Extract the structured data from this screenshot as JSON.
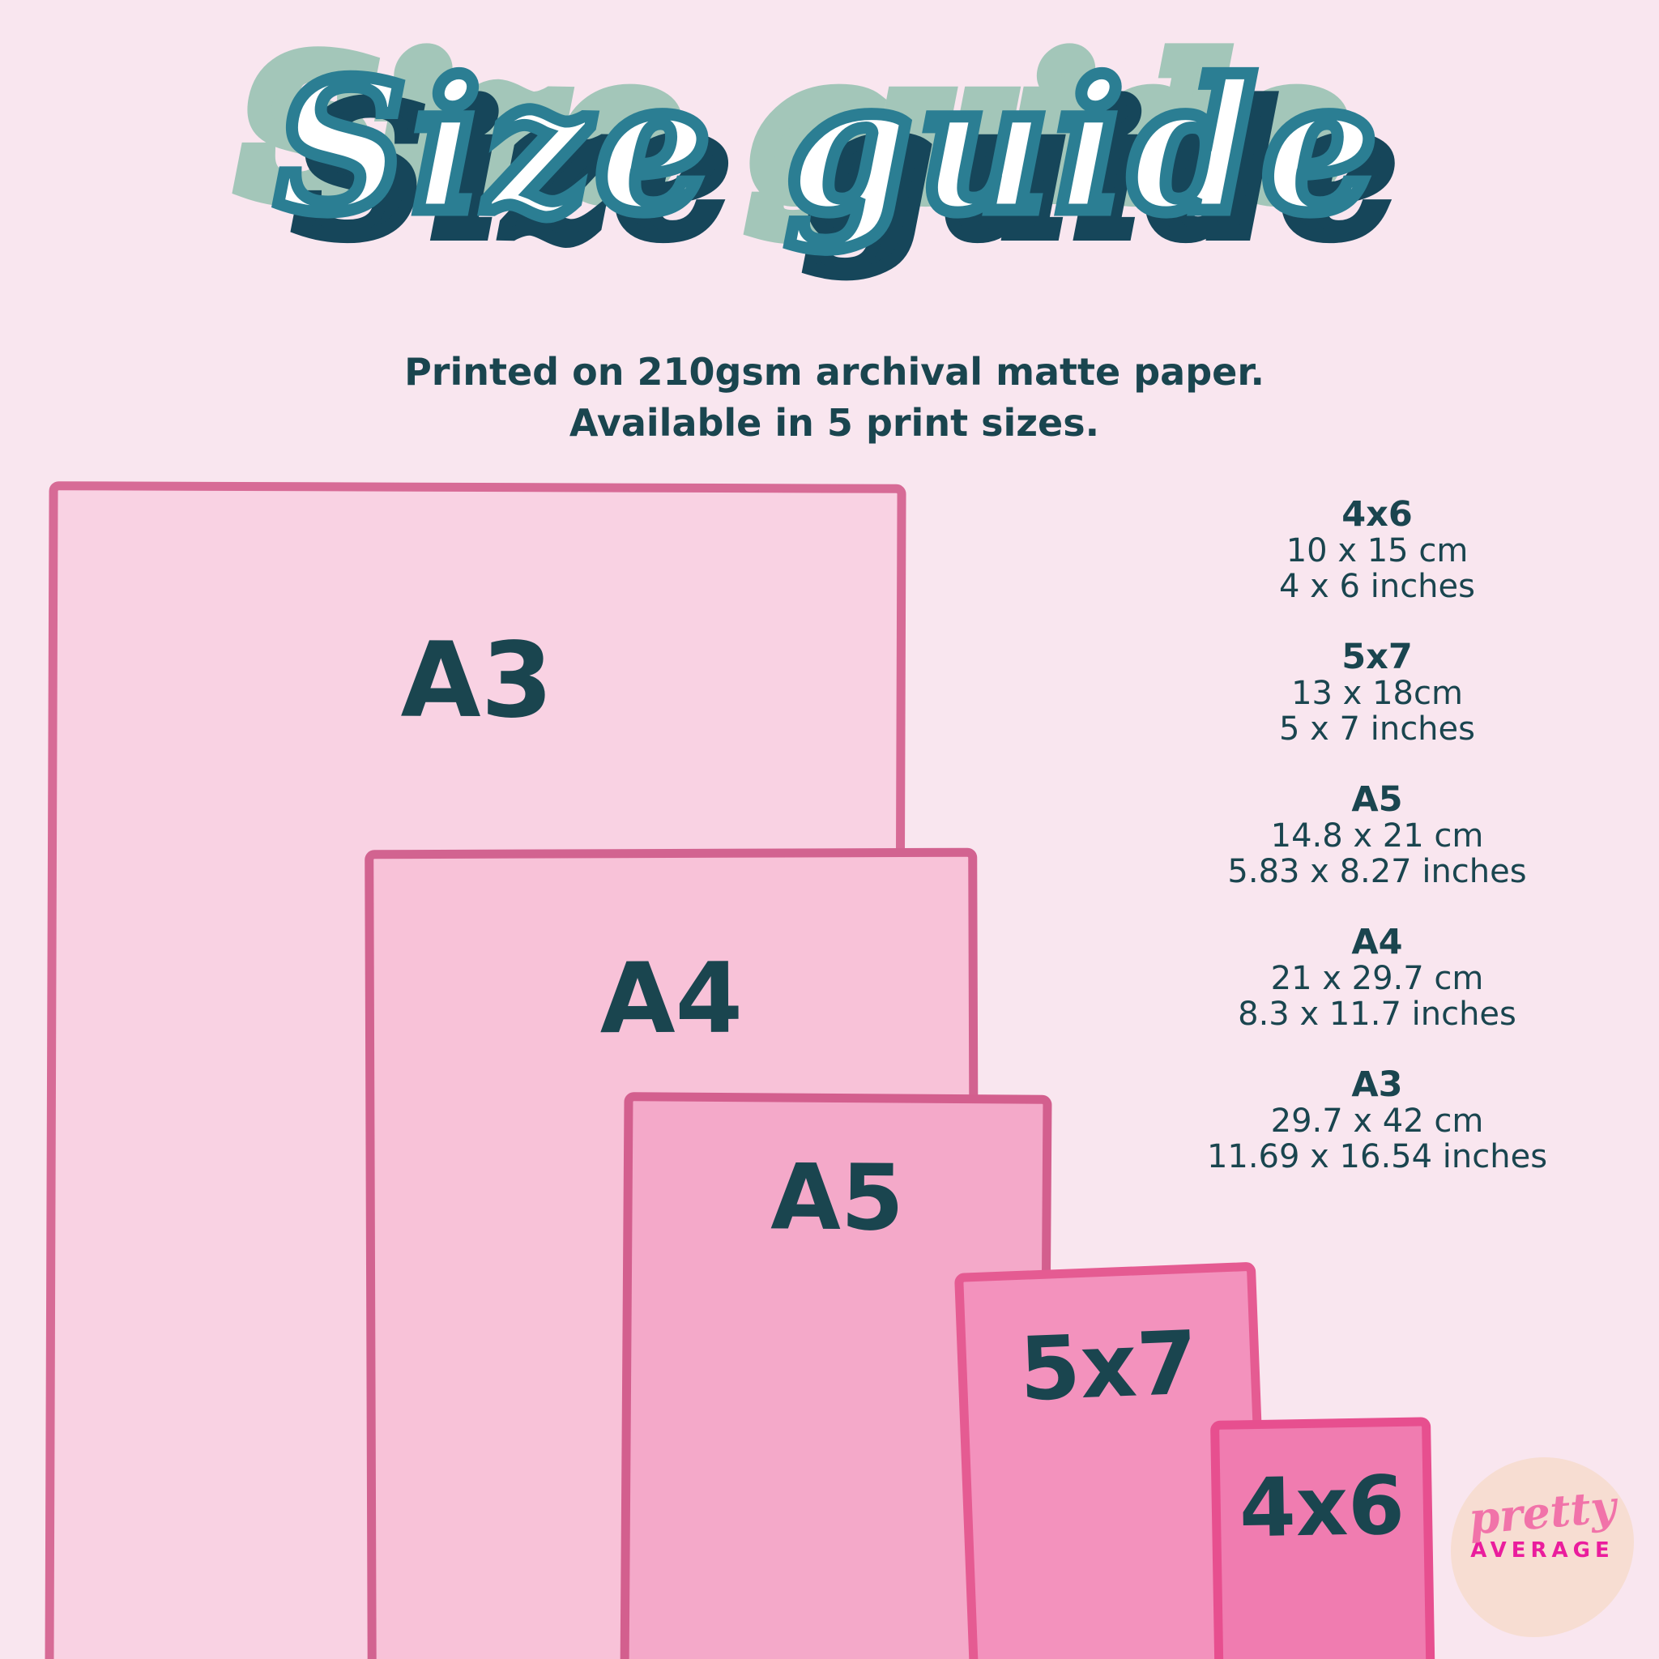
{
  "title": {
    "text": "Size guide"
  },
  "subtitle": {
    "line1": "Printed on 210gsm archival matte paper.",
    "line2": "Available in 5 print sizes."
  },
  "rectangles": [
    {
      "label": "A3",
      "fill": "#f9d2e3",
      "border": "#d76b96"
    },
    {
      "label": "A4",
      "fill": "#f8c2d8",
      "border": "#d26390"
    },
    {
      "label": "A5",
      "fill": "#f4a9c9",
      "border": "#d35f8e"
    },
    {
      "label": "5x7",
      "fill": "#f392bd",
      "border": "#e55b92"
    },
    {
      "label": "4x6",
      "fill": "#f07cb0",
      "border": "#e74f8f"
    }
  ],
  "size_list": [
    {
      "name": "4x6",
      "cm": "10 x 15 cm",
      "inches": "4 x 6 inches"
    },
    {
      "name": "5x7",
      "cm": "13 x 18cm",
      "inches": "5 x 7 inches"
    },
    {
      "name": "A5",
      "cm": "14.8 x 21 cm",
      "inches": "5.83 x 8.27 inches"
    },
    {
      "name": "A4",
      "cm": "21 x 29.7 cm",
      "inches": "8.3 x 11.7 inches"
    },
    {
      "name": "A3",
      "cm": "29.7 x 42 cm",
      "inches": "11.69 x 16.54 inches"
    }
  ],
  "logo": {
    "line1": "pretty",
    "line2": "AVERAGE"
  },
  "colors": {
    "background": "#f9e6ef",
    "text_dark": "#1a454f",
    "title_teal": "#2b7e93",
    "title_sage": "#a3c6b9",
    "title_navy": "#16465a",
    "title_core": "#ffffff",
    "logo_blob": "#f7ddd2",
    "logo_pretty": "#f173a9",
    "logo_average": "#ea1d9d"
  }
}
